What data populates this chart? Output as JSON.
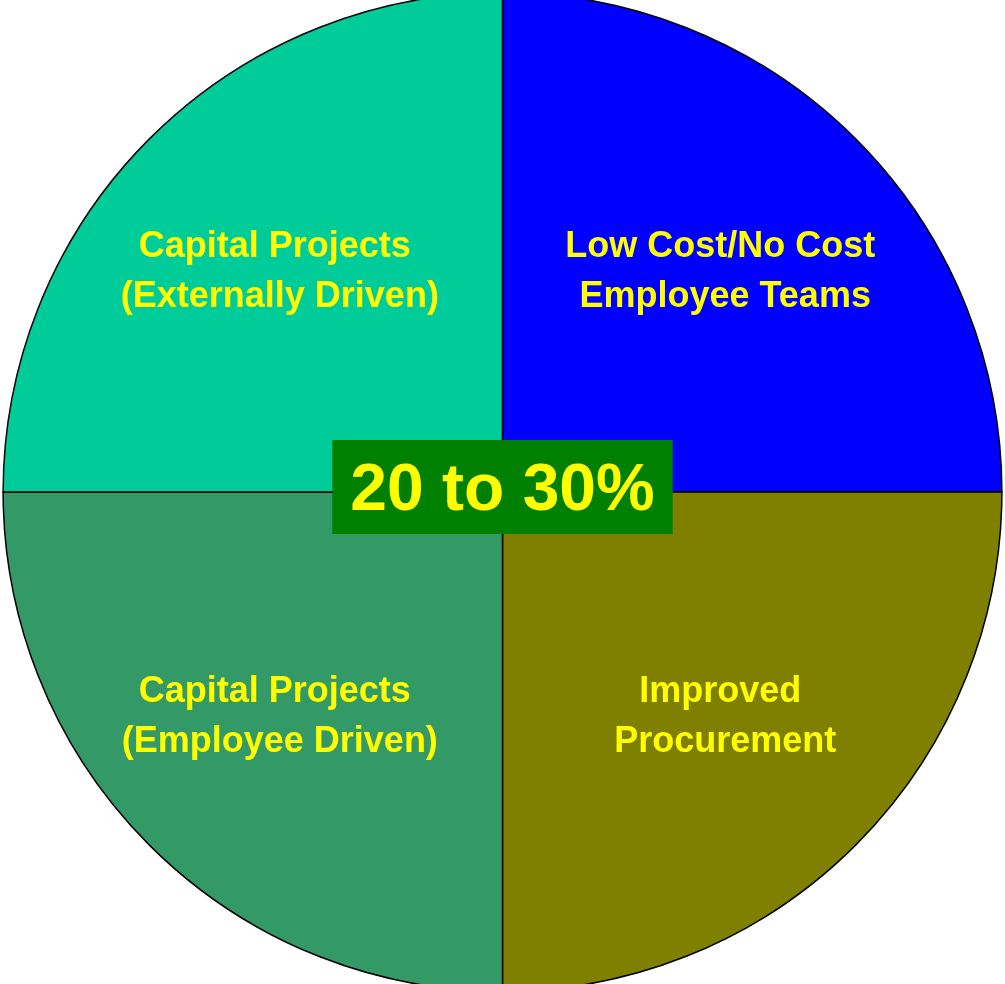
{
  "chart_data": {
    "type": "pie",
    "categories": [
      "Low Cost/No Cost Employee Teams",
      "Improved Procurement",
      "Capital Projects (Employee Driven)",
      "Capital Projects (Externally Driven)"
    ],
    "values": [
      25,
      25,
      25,
      25
    ],
    "colors": [
      "#0000ff",
      "#808000",
      "#339966",
      "#00cc99"
    ],
    "annotations": [
      "20 to 30%"
    ],
    "legend": false
  }
}
